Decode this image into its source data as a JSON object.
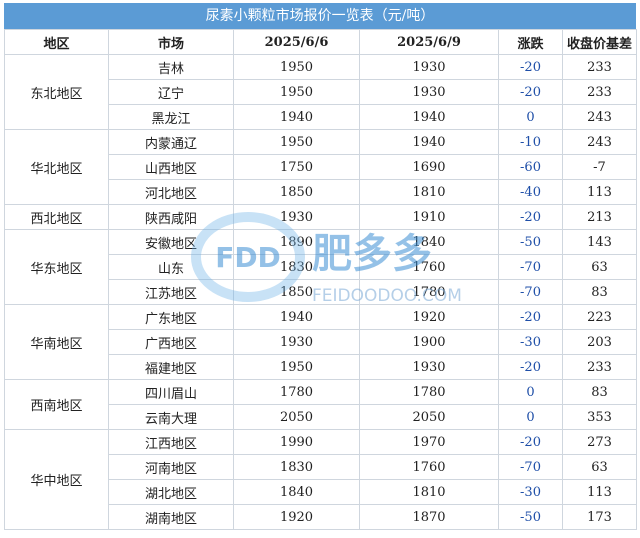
{
  "title": "尿素小颗粒市场报价一览表（元/吨）",
  "headers": [
    "地区",
    "市场",
    "2025/6/6",
    "2025/6/9",
    "涨跌",
    "收盘价基差"
  ],
  "groups": [
    {
      "region": "东北地区",
      "rows": [
        [
          "吉林",
          "1950",
          "1930",
          "-20",
          "233"
        ],
        [
          "辽宁",
          "1950",
          "1930",
          "-20",
          "233"
        ],
        [
          "黑龙江",
          "1940",
          "1940",
          "0",
          "243"
        ]
      ]
    },
    {
      "region": "华北地区",
      "rows": [
        [
          "内蒙通辽",
          "1950",
          "1940",
          "-10",
          "243"
        ],
        [
          "山西地区",
          "1750",
          "1690",
          "-60",
          "-7"
        ],
        [
          "河北地区",
          "1850",
          "1810",
          "-40",
          "113"
        ]
      ]
    },
    {
      "region": "西北地区",
      "rows": [
        [
          "陕西咸阳",
          "1930",
          "1910",
          "-20",
          "213"
        ]
      ]
    },
    {
      "region": "华东地区",
      "rows": [
        [
          "安徽地区",
          "1890",
          "1840",
          "-50",
          "143"
        ],
        [
          "山东",
          "1830",
          "1760",
          "-70",
          "63"
        ],
        [
          "江苏地区",
          "1850",
          "1780",
          "-70",
          "83"
        ]
      ]
    },
    {
      "region": "华南地区",
      "rows": [
        [
          "广东地区",
          "1940",
          "1920",
          "-20",
          "223"
        ],
        [
          "广西地区",
          "1930",
          "1900",
          "-30",
          "203"
        ],
        [
          "福建地区",
          "1950",
          "1930",
          "-20",
          "233"
        ]
      ]
    },
    {
      "region": "西南地区",
      "rows": [
        [
          "四川眉山",
          "1780",
          "1780",
          "0",
          "83"
        ],
        [
          "云南大理",
          "2050",
          "2050",
          "0",
          "353"
        ]
      ]
    },
    {
      "region": "华中地区",
      "rows": [
        [
          "江西地区",
          "1990",
          "1970",
          "-20",
          "273"
        ],
        [
          "河南地区",
          "1830",
          "1760",
          "-70",
          "63"
        ],
        [
          "湖北地区",
          "1840",
          "1810",
          "-30",
          "113"
        ],
        [
          "湖南地区",
          "1920",
          "1870",
          "-50",
          "173"
        ]
      ]
    }
  ],
  "watermark": {
    "logo": "FDD",
    "brand": "肥多多",
    "url": "FEIDOODOO.COM"
  },
  "colors": {
    "header_bg": "#5b9bd5",
    "change_text": "#1f4fa8",
    "border": "#cfd6de"
  }
}
